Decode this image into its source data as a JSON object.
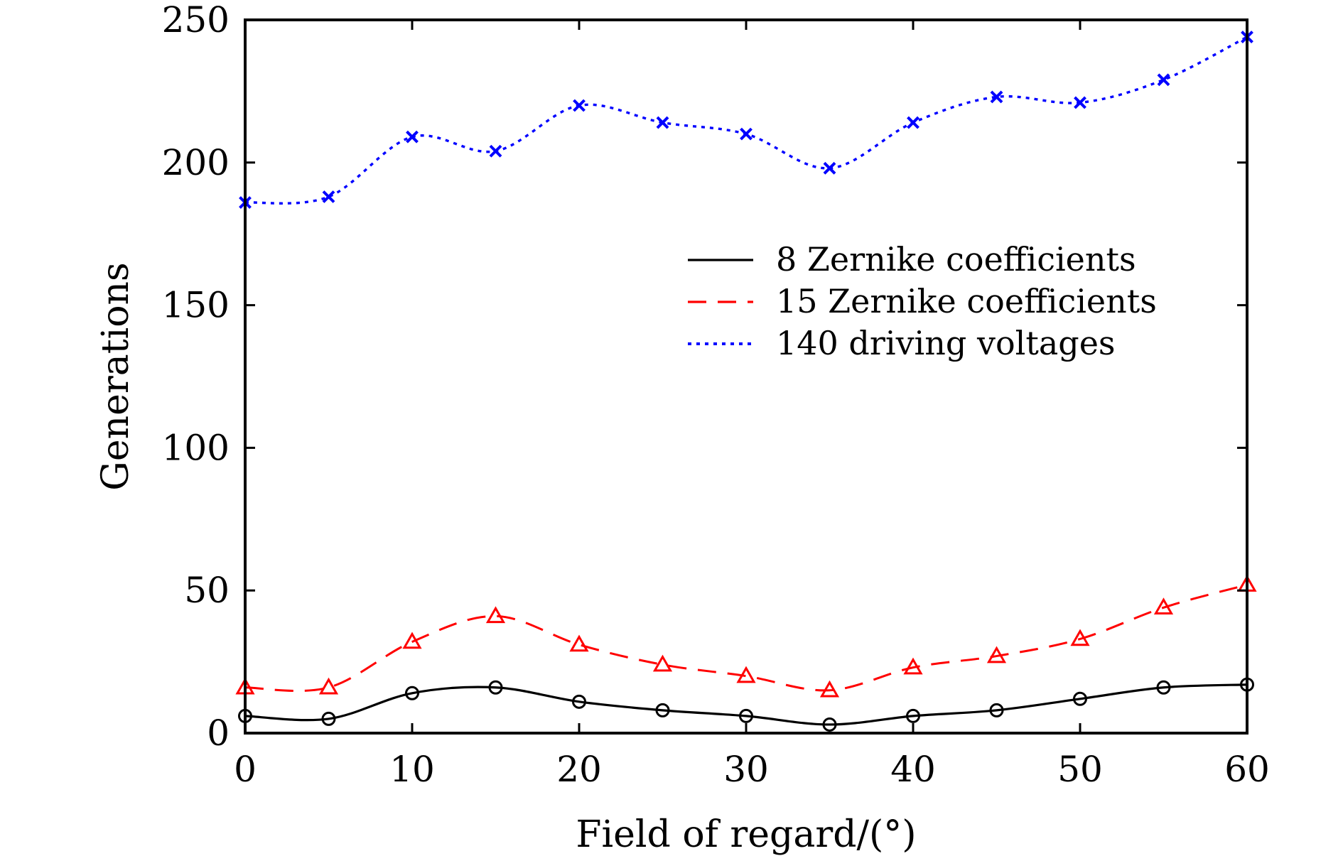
{
  "chart_data": {
    "type": "line",
    "title": "",
    "xlabel": "Field of regard/(°)",
    "ylabel": "Generations",
    "xlim": [
      0,
      60
    ],
    "ylim": [
      0,
      250
    ],
    "xticks": [
      0,
      10,
      20,
      30,
      40,
      50,
      60
    ],
    "xtick_labels": [
      "0",
      "10",
      "20",
      "30",
      "40",
      "50",
      "60"
    ],
    "yticks": [
      0,
      50,
      100,
      150,
      200,
      250
    ],
    "ytick_labels": [
      "0",
      "50",
      "100",
      "150",
      "200",
      "250"
    ],
    "grid": false,
    "legend_position": "center-right",
    "x": [
      0,
      5,
      10,
      15,
      20,
      25,
      30,
      35,
      40,
      45,
      50,
      55,
      60
    ],
    "series": [
      {
        "name": "8 Zernike coefficients",
        "color": "#000000",
        "line_style": "solid",
        "marker": "circle",
        "values": [
          6,
          5,
          14,
          16,
          11,
          8,
          6,
          3,
          6,
          8,
          12,
          16,
          17
        ]
      },
      {
        "name": "15 Zernike coefficients",
        "color": "#ff0000",
        "line_style": "dashed",
        "marker": "triangle",
        "values": [
          16,
          16,
          32,
          41,
          31,
          24,
          20,
          15,
          23,
          27,
          33,
          44,
          52
        ]
      },
      {
        "name": "140 driving voltages",
        "color": "#0000ff",
        "line_style": "dotted",
        "marker": "cross",
        "values": [
          186,
          188,
          209,
          204,
          220,
          214,
          210,
          198,
          214,
          223,
          221,
          229,
          244
        ]
      }
    ]
  }
}
